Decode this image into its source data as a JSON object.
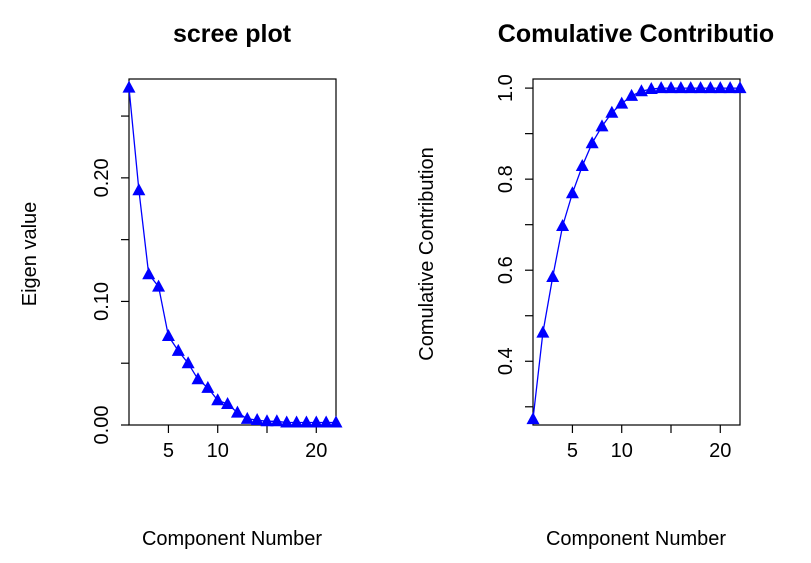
{
  "chart_data": [
    {
      "type": "line",
      "title": "scree plot",
      "xlabel": "Component Number",
      "ylabel": "Eigen value",
      "xlim": [
        1,
        22
      ],
      "ylim": [
        0,
        0.28
      ],
      "x_ticks": [
        5,
        10,
        15,
        20
      ],
      "x_tick_labels": [
        "5",
        "10",
        "",
        "20"
      ],
      "y_ticks": [
        0.0,
        0.05,
        0.1,
        0.15,
        0.2,
        0.25
      ],
      "y_tick_labels": [
        "0.00",
        "",
        "0.10",
        "",
        "0.20",
        ""
      ],
      "grid": false,
      "marker": "triangle",
      "color": "#0000FF",
      "series": [
        {
          "x": [
            1,
            2,
            3,
            4,
            5,
            6,
            7,
            8,
            9,
            10,
            11,
            12,
            13,
            14,
            15,
            16,
            17,
            18,
            19,
            20,
            21,
            22
          ],
          "values": [
            0.273,
            0.19,
            0.122,
            0.112,
            0.072,
            0.06,
            0.05,
            0.037,
            0.03,
            0.02,
            0.017,
            0.01,
            0.005,
            0.004,
            0.003,
            0.003,
            0.002,
            0.002,
            0.002,
            0.002,
            0.002,
            0.002
          ]
        }
      ]
    },
    {
      "type": "line",
      "title": "Comulative Contributio",
      "xlabel": "Component Number",
      "ylabel": "Comulative Contribution",
      "xlim": [
        1,
        22
      ],
      "ylim": [
        0.26,
        1.02
      ],
      "x_ticks": [
        5,
        10,
        15,
        20
      ],
      "x_tick_labels": [
        "5",
        "10",
        "",
        "20"
      ],
      "y_ticks": [
        0.3,
        0.4,
        0.5,
        0.6,
        0.7,
        0.8,
        0.9,
        1.0
      ],
      "y_tick_labels": [
        "",
        "0.4",
        "",
        "0.6",
        "",
        "0.8",
        "",
        "1.0"
      ],
      "grid": false,
      "marker": "triangle",
      "color": "#0000FF",
      "series": [
        {
          "x": [
            1,
            2,
            3,
            4,
            5,
            6,
            7,
            8,
            9,
            10,
            11,
            12,
            13,
            14,
            15,
            16,
            17,
            18,
            19,
            20,
            21,
            22
          ],
          "values": [
            0.273,
            0.463,
            0.585,
            0.697,
            0.769,
            0.829,
            0.879,
            0.916,
            0.946,
            0.966,
            0.983,
            0.993,
            0.998,
            1.0,
            1.0,
            1.0,
            1.0,
            1.0,
            1.0,
            1.0,
            1.0,
            1.0
          ]
        }
      ]
    }
  ]
}
